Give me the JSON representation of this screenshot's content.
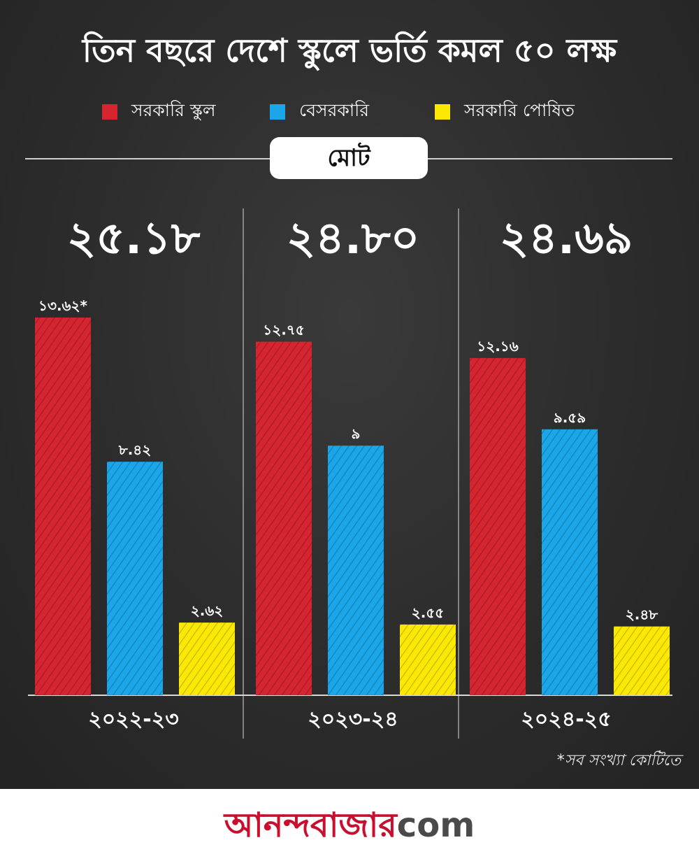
{
  "chart_data": {
    "type": "bar",
    "title": "তিন বছরে দেশে স্কুলে ভর্তি কমল ৫০ লক্ষ",
    "subtitle": "মোট",
    "footnote": "*সব সংখ্যা কোটিতে",
    "categories": [
      "২০২২-২৩",
      "২০২৩-২৪",
      "২০২৪-২৫"
    ],
    "totals": [
      "২৫.১৮",
      "২৪.৮০",
      "২৪.৬৯"
    ],
    "series": [
      {
        "name": "সরকারি স্কুল",
        "color": "#d42531",
        "values": [
          13.62,
          12.75,
          12.16
        ],
        "labels": [
          "১৩.৬২*",
          "১২.৭৫",
          "১২.১৬"
        ]
      },
      {
        "name": "বেসরকারি",
        "color": "#1aa6e8",
        "values": [
          8.42,
          9,
          9.59
        ],
        "labels": [
          "৮.৪২",
          "৯",
          "৯.৫৯"
        ]
      },
      {
        "name": "সরকারি পোষিত",
        "color": "#fbe805",
        "values": [
          2.62,
          2.55,
          2.48
        ],
        "labels": [
          "২.৬২",
          "২.৫৫",
          "২.৪৮"
        ]
      }
    ],
    "ylim": [
      0,
      14
    ],
    "grid": false,
    "legend_position": "top"
  },
  "brand": {
    "name": "আনন্দবাজার",
    "suffix": "com"
  }
}
